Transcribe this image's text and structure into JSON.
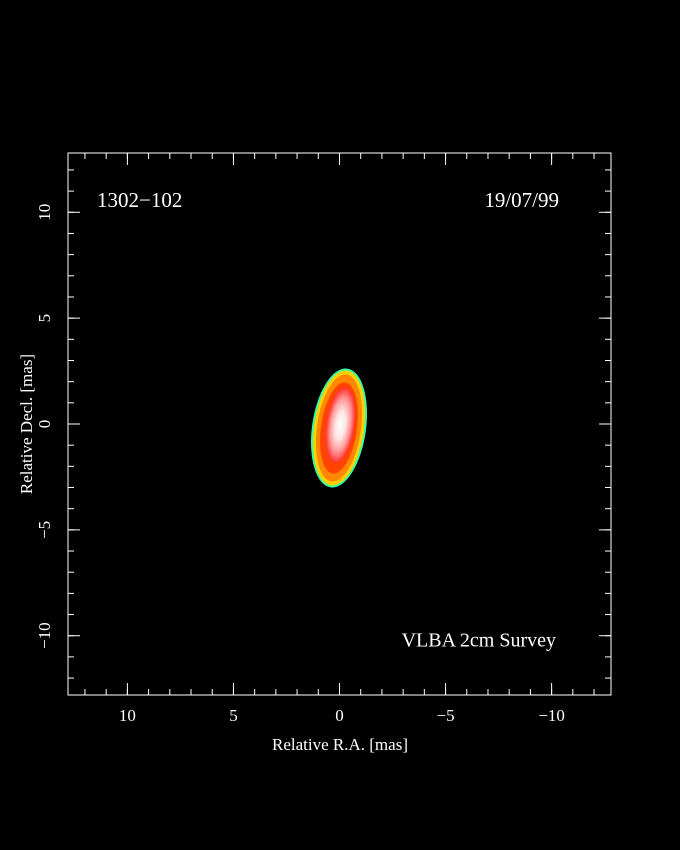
{
  "chart_data": {
    "type": "image",
    "source": "1302−102",
    "date": "19/07/99",
    "survey": "VLBA 2cm Survey",
    "x_label": "Relative R.A. [mas]",
    "y_label": "Relative Decl. [mas]",
    "xlim": [
      12.8,
      -12.8
    ],
    "ylim": [
      -12.8,
      12.8
    ],
    "xticks": [
      10,
      5,
      0,
      {
        "value": -5,
        "label": "−5"
      },
      {
        "value": -10,
        "label": "−10"
      }
    ],
    "yticks": [
      {
        "value": -10,
        "label": "−10"
      },
      {
        "value": -5,
        "label": "−5"
      },
      0,
      5,
      10
    ]
  }
}
